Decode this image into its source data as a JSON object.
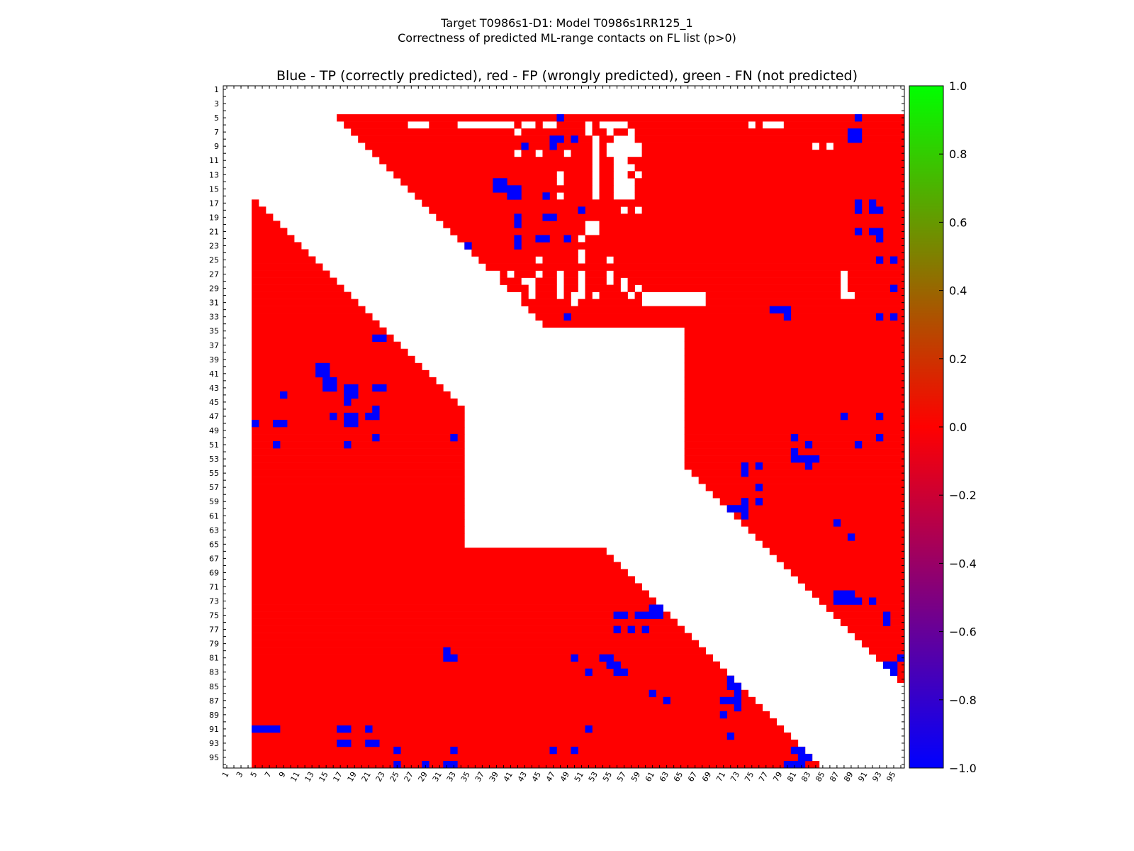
{
  "figure": {
    "title_line1": "Target T0986s1-D1: Model T0986s1RR125_1",
    "title_line2": "Correctness of predicted ML-range contacts on FL list (p>0)"
  },
  "chart_data": {
    "type": "heatmap",
    "title": "Blue - TP (correctly predicted), red - FP (wrongly predicted), green - FN (not predicted)",
    "n_residues": 96,
    "tick_labels": [
      "1",
      "3",
      "5",
      "7",
      "9",
      "11",
      "13",
      "15",
      "17",
      "19",
      "21",
      "23",
      "25",
      "27",
      "29",
      "31",
      "33",
      "35",
      "37",
      "39",
      "41",
      "43",
      "45",
      "47",
      "49",
      "51",
      "53",
      "55",
      "57",
      "59",
      "61",
      "63",
      "65",
      "67",
      "69",
      "71",
      "73",
      "75",
      "77",
      "79",
      "81",
      "83",
      "85",
      "87",
      "89",
      "91",
      "93",
      "95"
    ],
    "colors": {
      "tp": "#0000ff",
      "fp": "#ff0000",
      "fn": "#00ff00",
      "empty": "#ffffff"
    },
    "cell_values": {
      "tp": -1.0,
      "fp": 0.0,
      "fn": 1.0
    },
    "colorbar": {
      "range": [
        -1.0,
        1.0
      ],
      "ticks": [
        "1.0",
        "0.8",
        "0.6",
        "0.4",
        "0.2",
        "0.0",
        "−0.2",
        "−0.4",
        "−0.6",
        "−0.8",
        "−1.0"
      ],
      "tick_values": [
        1.0,
        0.8,
        0.6,
        0.4,
        0.2,
        0.0,
        -0.2,
        -0.4,
        -0.6,
        -0.8,
        -1.0
      ]
    },
    "upper_fp_region": {
      "row_start": 5,
      "first_col_at_row5": 17,
      "last_col": 96,
      "col_offset_per_row": 1
    },
    "lower_fp_region": {
      "col_start": 5,
      "first_row_at_col5": 17,
      "last_row": 96,
      "row_offset_per_col": 1
    },
    "central_gap": {
      "residue_range": [
        35,
        65
      ]
    },
    "tp_cells": [
      [
        5,
        48
      ],
      [
        5,
        90
      ],
      [
        7,
        89
      ],
      [
        7,
        90
      ],
      [
        8,
        47
      ],
      [
        8,
        48
      ],
      [
        8,
        89
      ],
      [
        8,
        90
      ],
      [
        8,
        50
      ],
      [
        9,
        43
      ],
      [
        9,
        47
      ],
      [
        14,
        39
      ],
      [
        14,
        40
      ],
      [
        15,
        39
      ],
      [
        15,
        40
      ],
      [
        15,
        41
      ],
      [
        15,
        42
      ],
      [
        16,
        42
      ],
      [
        16,
        41
      ],
      [
        16,
        46
      ],
      [
        17,
        90
      ],
      [
        17,
        92
      ],
      [
        18,
        90
      ],
      [
        18,
        92
      ],
      [
        18,
        93
      ],
      [
        18,
        51
      ],
      [
        19,
        42
      ],
      [
        19,
        46
      ],
      [
        19,
        47
      ],
      [
        20,
        42
      ],
      [
        21,
        90
      ],
      [
        21,
        92
      ],
      [
        21,
        93
      ],
      [
        22,
        42
      ],
      [
        22,
        45
      ],
      [
        22,
        46
      ],
      [
        22,
        49
      ],
      [
        22,
        93
      ],
      [
        23,
        35
      ],
      [
        23,
        42
      ],
      [
        25,
        93
      ],
      [
        25,
        95
      ],
      [
        29,
        95
      ],
      [
        32,
        78
      ],
      [
        32,
        79
      ],
      [
        32,
        80
      ],
      [
        33,
        80
      ],
      [
        33,
        49
      ],
      [
        33,
        93
      ],
      [
        33,
        95
      ],
      [
        36,
        22
      ],
      [
        36,
        23
      ],
      [
        40,
        14
      ],
      [
        40,
        15
      ],
      [
        41,
        14
      ],
      [
        41,
        15
      ],
      [
        42,
        15
      ],
      [
        42,
        16
      ],
      [
        43,
        15
      ],
      [
        43,
        16
      ],
      [
        43,
        18
      ],
      [
        43,
        19
      ],
      [
        43,
        22
      ],
      [
        43,
        23
      ],
      [
        44,
        9
      ],
      [
        44,
        18
      ],
      [
        44,
        19
      ],
      [
        45,
        18
      ],
      [
        46,
        22
      ],
      [
        47,
        16
      ],
      [
        47,
        18
      ],
      [
        47,
        19
      ],
      [
        47,
        21
      ],
      [
        47,
        22
      ],
      [
        47,
        88
      ],
      [
        47,
        93
      ],
      [
        48,
        5
      ],
      [
        48,
        8
      ],
      [
        48,
        9
      ],
      [
        48,
        18
      ],
      [
        48,
        19
      ],
      [
        48,
        8
      ],
      [
        50,
        22
      ],
      [
        50,
        33
      ],
      [
        50,
        81
      ],
      [
        50,
        93
      ],
      [
        51,
        8
      ],
      [
        51,
        18
      ],
      [
        51,
        83
      ],
      [
        51,
        90
      ],
      [
        52,
        81
      ],
      [
        53,
        81
      ],
      [
        53,
        82
      ],
      [
        53,
        83
      ],
      [
        53,
        84
      ],
      [
        54,
        74
      ],
      [
        54,
        76
      ],
      [
        54,
        83
      ],
      [
        55,
        74
      ],
      [
        57,
        76
      ],
      [
        59,
        74
      ],
      [
        59,
        76
      ],
      [
        60,
        72
      ],
      [
        60,
        73
      ],
      [
        60,
        74
      ],
      [
        61,
        74
      ],
      [
        62,
        87
      ],
      [
        64,
        89
      ],
      [
        72,
        87
      ],
      [
        72,
        88
      ],
      [
        72,
        89
      ],
      [
        73,
        87
      ],
      [
        73,
        88
      ],
      [
        73,
        89
      ],
      [
        73,
        90
      ],
      [
        73,
        92
      ],
      [
        74,
        61
      ],
      [
        74,
        62
      ],
      [
        75,
        61
      ],
      [
        75,
        62
      ],
      [
        75,
        56
      ],
      [
        75,
        57
      ],
      [
        75,
        59
      ],
      [
        75,
        60
      ],
      [
        75,
        94
      ],
      [
        76,
        94
      ],
      [
        77,
        56
      ],
      [
        77,
        58
      ],
      [
        77,
        60
      ],
      [
        80,
        32
      ],
      [
        81,
        32
      ],
      [
        81,
        33
      ],
      [
        81,
        50
      ],
      [
        81,
        54
      ],
      [
        81,
        55
      ],
      [
        81,
        96
      ],
      [
        82,
        55
      ],
      [
        82,
        56
      ],
      [
        82,
        94
      ],
      [
        82,
        95
      ],
      [
        83,
        52
      ],
      [
        83,
        56
      ],
      [
        83,
        57
      ],
      [
        83,
        95
      ],
      [
        84,
        72
      ],
      [
        85,
        72
      ],
      [
        85,
        73
      ],
      [
        86,
        73
      ],
      [
        86,
        61
      ],
      [
        87,
        63
      ],
      [
        87,
        71
      ],
      [
        87,
        72
      ],
      [
        87,
        73
      ],
      [
        88,
        73
      ],
      [
        89,
        71
      ],
      [
        91,
        5
      ],
      [
        91,
        6
      ],
      [
        91,
        7
      ],
      [
        91,
        8
      ],
      [
        91,
        17
      ],
      [
        91,
        18
      ],
      [
        91,
        21
      ],
      [
        91,
        52
      ],
      [
        92,
        72
      ],
      [
        93,
        17
      ],
      [
        93,
        18
      ],
      [
        93,
        21
      ],
      [
        93,
        22
      ],
      [
        94,
        25
      ],
      [
        94,
        33
      ],
      [
        94,
        47
      ],
      [
        94,
        50
      ],
      [
        94,
        81
      ],
      [
        94,
        82
      ],
      [
        95,
        82
      ],
      [
        95,
        83
      ],
      [
        96,
        25
      ],
      [
        96,
        29
      ],
      [
        96,
        32
      ],
      [
        96,
        33
      ],
      [
        96,
        80
      ],
      [
        96,
        81
      ],
      [
        96,
        82
      ]
    ],
    "empty_cells_in_fp_regions": [
      [
        6,
        27
      ],
      [
        6,
        28
      ],
      [
        6,
        29
      ],
      [
        6,
        34
      ],
      [
        6,
        35
      ],
      [
        6,
        36
      ],
      [
        6,
        37
      ],
      [
        6,
        38
      ],
      [
        6,
        39
      ],
      [
        6,
        40
      ],
      [
        6,
        41
      ],
      [
        6,
        43
      ],
      [
        6,
        44
      ],
      [
        6,
        46
      ],
      [
        6,
        47
      ],
      [
        6,
        52
      ],
      [
        6,
        54
      ],
      [
        6,
        55
      ],
      [
        6,
        56
      ],
      [
        6,
        57
      ],
      [
        6,
        75
      ],
      [
        6,
        77
      ],
      [
        6,
        78
      ],
      [
        6,
        79
      ],
      [
        7,
        42
      ],
      [
        7,
        52
      ],
      [
        7,
        55
      ],
      [
        7,
        58
      ],
      [
        8,
        53
      ],
      [
        8,
        56
      ],
      [
        8,
        57
      ],
      [
        8,
        58
      ],
      [
        9,
        53
      ],
      [
        9,
        55
      ],
      [
        9,
        56
      ],
      [
        9,
        57
      ],
      [
        9,
        58
      ],
      [
        9,
        59
      ],
      [
        9,
        84
      ],
      [
        9,
        86
      ],
      [
        10,
        42
      ],
      [
        10,
        45
      ],
      [
        10,
        49
      ],
      [
        10,
        53
      ],
      [
        10,
        55
      ],
      [
        10,
        56
      ],
      [
        10,
        57
      ],
      [
        10,
        58
      ],
      [
        10,
        59
      ],
      [
        11,
        53
      ],
      [
        11,
        56
      ],
      [
        11,
        57
      ],
      [
        12,
        53
      ],
      [
        12,
        56
      ],
      [
        12,
        57
      ],
      [
        12,
        58
      ],
      [
        13,
        48
      ],
      [
        13,
        53
      ],
      [
        13,
        56
      ],
      [
        13,
        57
      ],
      [
        13,
        59
      ],
      [
        14,
        48
      ],
      [
        14,
        53
      ],
      [
        14,
        56
      ],
      [
        14,
        57
      ],
      [
        14,
        58
      ],
      [
        15,
        53
      ],
      [
        15,
        56
      ],
      [
        15,
        57
      ],
      [
        15,
        58
      ],
      [
        16,
        48
      ],
      [
        16,
        53
      ],
      [
        16,
        56
      ],
      [
        16,
        57
      ],
      [
        16,
        58
      ],
      [
        18,
        57
      ],
      [
        18,
        59
      ],
      [
        20,
        52
      ],
      [
        20,
        53
      ],
      [
        21,
        52
      ],
      [
        21,
        53
      ],
      [
        22,
        51
      ],
      [
        24,
        51
      ],
      [
        25,
        45
      ],
      [
        25,
        51
      ],
      [
        25,
        55
      ],
      [
        27,
        39
      ],
      [
        27,
        41
      ],
      [
        27,
        45
      ],
      [
        27,
        48
      ],
      [
        27,
        51
      ],
      [
        27,
        55
      ],
      [
        27,
        88
      ],
      [
        28,
        43
      ],
      [
        28,
        44
      ],
      [
        28,
        48
      ],
      [
        28,
        51
      ],
      [
        28,
        55
      ],
      [
        28,
        57
      ],
      [
        28,
        88
      ],
      [
        29,
        44
      ],
      [
        29,
        48
      ],
      [
        29,
        51
      ],
      [
        29,
        57
      ],
      [
        29,
        59
      ],
      [
        29,
        88
      ],
      [
        30,
        42
      ],
      [
        30,
        44
      ],
      [
        30,
        48
      ],
      [
        30,
        50
      ],
      [
        30,
        51
      ],
      [
        30,
        53
      ],
      [
        30,
        58
      ],
      [
        30,
        60
      ],
      [
        30,
        61
      ],
      [
        30,
        62
      ],
      [
        30,
        63
      ],
      [
        30,
        64
      ],
      [
        30,
        65
      ],
      [
        30,
        66
      ],
      [
        30,
        67
      ],
      [
        30,
        68
      ],
      [
        30,
        88
      ],
      [
        30,
        89
      ],
      [
        31,
        50
      ],
      [
        31,
        60
      ],
      [
        31,
        61
      ],
      [
        31,
        62
      ],
      [
        31,
        63
      ],
      [
        31,
        64
      ],
      [
        31,
        65
      ],
      [
        31,
        66
      ],
      [
        31,
        67
      ],
      [
        31,
        68
      ]
    ]
  }
}
